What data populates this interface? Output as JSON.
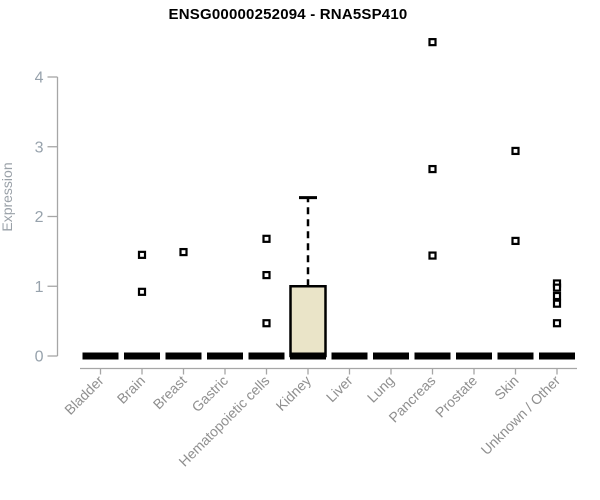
{
  "chart_data": {
    "type": "boxplot",
    "title": "ENSG00000252094 - RNA5SP410",
    "ylabel": "Expression",
    "xlabel": "",
    "yticks": [
      0,
      1,
      2,
      3,
      4
    ],
    "ylim": [
      0,
      4
    ],
    "grid": false,
    "legend": "none",
    "categories": [
      "Bladder",
      "Brain",
      "Breast",
      "Gastric",
      "Hematopoietic cells",
      "Kidney",
      "Liver",
      "Lung",
      "Pancreas",
      "Prostate",
      "Skin",
      "Unknown / Other"
    ],
    "series": [
      {
        "category": "Bladder",
        "low": 0,
        "q1": 0,
        "median": 0,
        "q3": 0,
        "high": 0,
        "outliers": []
      },
      {
        "category": "Brain",
        "low": 0,
        "q1": 0,
        "median": 0,
        "q3": 0,
        "high": 0,
        "outliers": [
          1.45,
          0.92
        ]
      },
      {
        "category": "Breast",
        "low": 0,
        "q1": 0,
        "median": 0,
        "q3": 0,
        "high": 0,
        "outliers": [
          1.49
        ]
      },
      {
        "category": "Gastric",
        "low": 0,
        "q1": 0,
        "median": 0,
        "q3": 0,
        "high": 0,
        "outliers": []
      },
      {
        "category": "Hematopoietic cells",
        "low": 0,
        "q1": 0,
        "median": 0,
        "q3": 0,
        "high": 0,
        "outliers": [
          1.68,
          1.16,
          0.47
        ]
      },
      {
        "category": "Kidney",
        "low": 0,
        "q1": 0,
        "median": 0,
        "q3": 1.0,
        "high": 2.27,
        "outliers": []
      },
      {
        "category": "Liver",
        "low": 0,
        "q1": 0,
        "median": 0,
        "q3": 0,
        "high": 0,
        "outliers": []
      },
      {
        "category": "Lung",
        "low": 0,
        "q1": 0,
        "median": 0,
        "q3": 0,
        "high": 0,
        "outliers": []
      },
      {
        "category": "Pancreas",
        "low": 0,
        "q1": 0,
        "median": 0,
        "q3": 0,
        "high": 0,
        "outliers": [
          4.5,
          2.68,
          1.44
        ]
      },
      {
        "category": "Prostate",
        "low": 0,
        "q1": 0,
        "median": 0,
        "q3": 0,
        "high": 0,
        "outliers": []
      },
      {
        "category": "Skin",
        "low": 0,
        "q1": 0,
        "median": 0,
        "q3": 0,
        "high": 0,
        "outliers": [
          2.94,
          1.65
        ]
      },
      {
        "category": "Unknown / Other",
        "low": 0,
        "q1": 0,
        "median": 0,
        "q3": 0,
        "high": 0,
        "outliers": [
          1.04,
          0.98,
          0.86,
          0.75,
          0.47
        ]
      }
    ],
    "colors": {
      "background": "#ffffff",
      "title_text": "#000000",
      "axis_line": "#a6a6a6",
      "axis_number_text": "#97a2ac",
      "y_axis_title_text": "#9aa1a8",
      "category_text": "#8f8f8f",
      "box_fill": "#eae4c8",
      "box_stroke": "#000000",
      "whisker": "#000000",
      "median": "#000000",
      "outlier_fill": "#ffffff",
      "outlier_stroke": "#000000"
    }
  }
}
